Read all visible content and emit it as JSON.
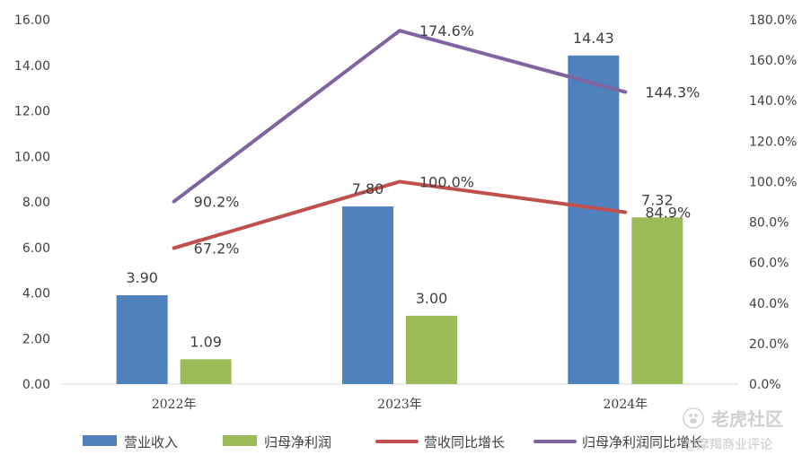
{
  "chart_data": {
    "type": "bar",
    "categories": [
      "2022年",
      "2023年",
      "2024年"
    ],
    "series": [
      {
        "name": "营业收入",
        "type": "bar",
        "axis": "left",
        "color": "#4f81bd",
        "values": [
          3.9,
          7.8,
          14.43
        ],
        "labels": [
          "3.90",
          "7.80",
          "14.43"
        ]
      },
      {
        "name": "归母净利润",
        "type": "bar",
        "axis": "left",
        "color": "#9bbb59",
        "values": [
          1.09,
          3.0,
          7.32
        ],
        "labels": [
          "1.09",
          "3.00",
          "7.32"
        ]
      },
      {
        "name": "营收同比增长",
        "type": "line",
        "axis": "right",
        "color": "#c0504d",
        "values": [
          67.2,
          100.0,
          84.9
        ],
        "labels": [
          "67.2%",
          "100.0%",
          "84.9%"
        ]
      },
      {
        "name": "归母净利润同比增长",
        "type": "line",
        "axis": "right",
        "color": "#8064a2",
        "values": [
          90.2,
          174.6,
          144.3
        ],
        "labels": [
          "90.2%",
          "174.6%",
          "144.3%"
        ]
      }
    ],
    "y_left": {
      "min": 0,
      "max": 16,
      "step": 2,
      "ticks": [
        "0.00",
        "2.00",
        "4.00",
        "6.00",
        "8.00",
        "10.00",
        "12.00",
        "14.00",
        "16.00"
      ]
    },
    "y_right": {
      "min": 0,
      "max": 180,
      "step": 20,
      "ticks": [
        "0.0%",
        "20.0%",
        "40.0%",
        "60.0%",
        "80.0%",
        "100.0%",
        "120.0%",
        "140.0%",
        "160.0%",
        "180.0%"
      ]
    },
    "title": "",
    "xlabel": "",
    "ylabel": "",
    "grid": false,
    "legend_position": "bottom"
  },
  "watermark": {
    "main": "老虎社区",
    "sub": "@摩羯商业评论",
    "icon": "paw-icon"
  }
}
